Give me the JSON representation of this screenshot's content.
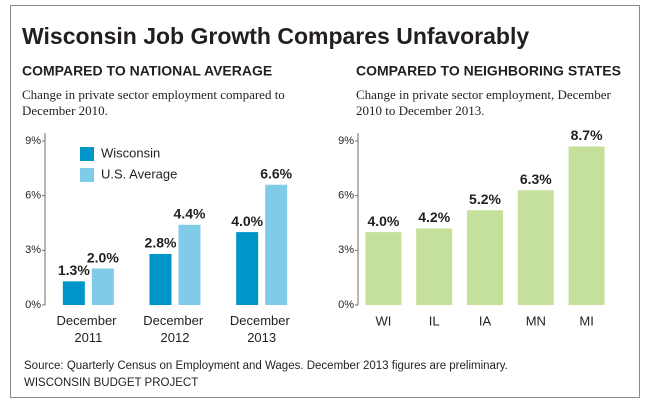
{
  "title": "Wisconsin Job Growth Compares Unfavorably",
  "source": "Source: Quarterly Census on Employment and Wages. December 2013 figures are preliminary.",
  "credit": "WISCONSIN BUDGET PROJECT",
  "chart_data": [
    {
      "type": "bar",
      "title": "COMPARED TO NATIONAL AVERAGE",
      "subtitle": [
        "Change in private sector employment compared to",
        "December 2010."
      ],
      "categories": [
        "December 2011",
        "December 2012",
        "December 2013"
      ],
      "series": [
        {
          "name": "Wisconsin",
          "color": "#0095c8",
          "values": [
            1.3,
            2.8,
            4.0
          ],
          "value_labels": [
            "1.3%",
            "2.8%",
            "4.0%"
          ]
        },
        {
          "name": "U.S. Average",
          "color": "#7fcbe8",
          "values": [
            2.0,
            4.4,
            6.6
          ],
          "value_labels": [
            "2.0%",
            "4.4%",
            "6.6%"
          ]
        }
      ],
      "ylim": [
        0,
        9
      ],
      "yticks": [
        {
          "value": 0,
          "label": "0%"
        },
        {
          "value": 3,
          "label": "3%"
        },
        {
          "value": 6,
          "label": "6%"
        },
        {
          "value": 9,
          "label": "9%"
        }
      ],
      "legend": "top-left"
    },
    {
      "type": "bar",
      "title": "COMPARED TO NEIGHBORING STATES",
      "subtitle": [
        "Change in private sector employment, December",
        "2010 to December 2013."
      ],
      "categories": [
        "WI",
        "IL",
        "IA",
        "MN",
        "MI"
      ],
      "values": [
        4.0,
        4.2,
        5.2,
        6.3,
        8.7
      ],
      "value_labels": [
        "4.0%",
        "4.2%",
        "5.2%",
        "6.3%",
        "8.7%"
      ],
      "color": "#c5e09b",
      "ylim": [
        0,
        9
      ],
      "yticks": [
        {
          "value": 0,
          "label": "0%"
        },
        {
          "value": 3,
          "label": "3%"
        },
        {
          "value": 6,
          "label": "6%"
        },
        {
          "value": 9,
          "label": "9%"
        }
      ]
    }
  ]
}
